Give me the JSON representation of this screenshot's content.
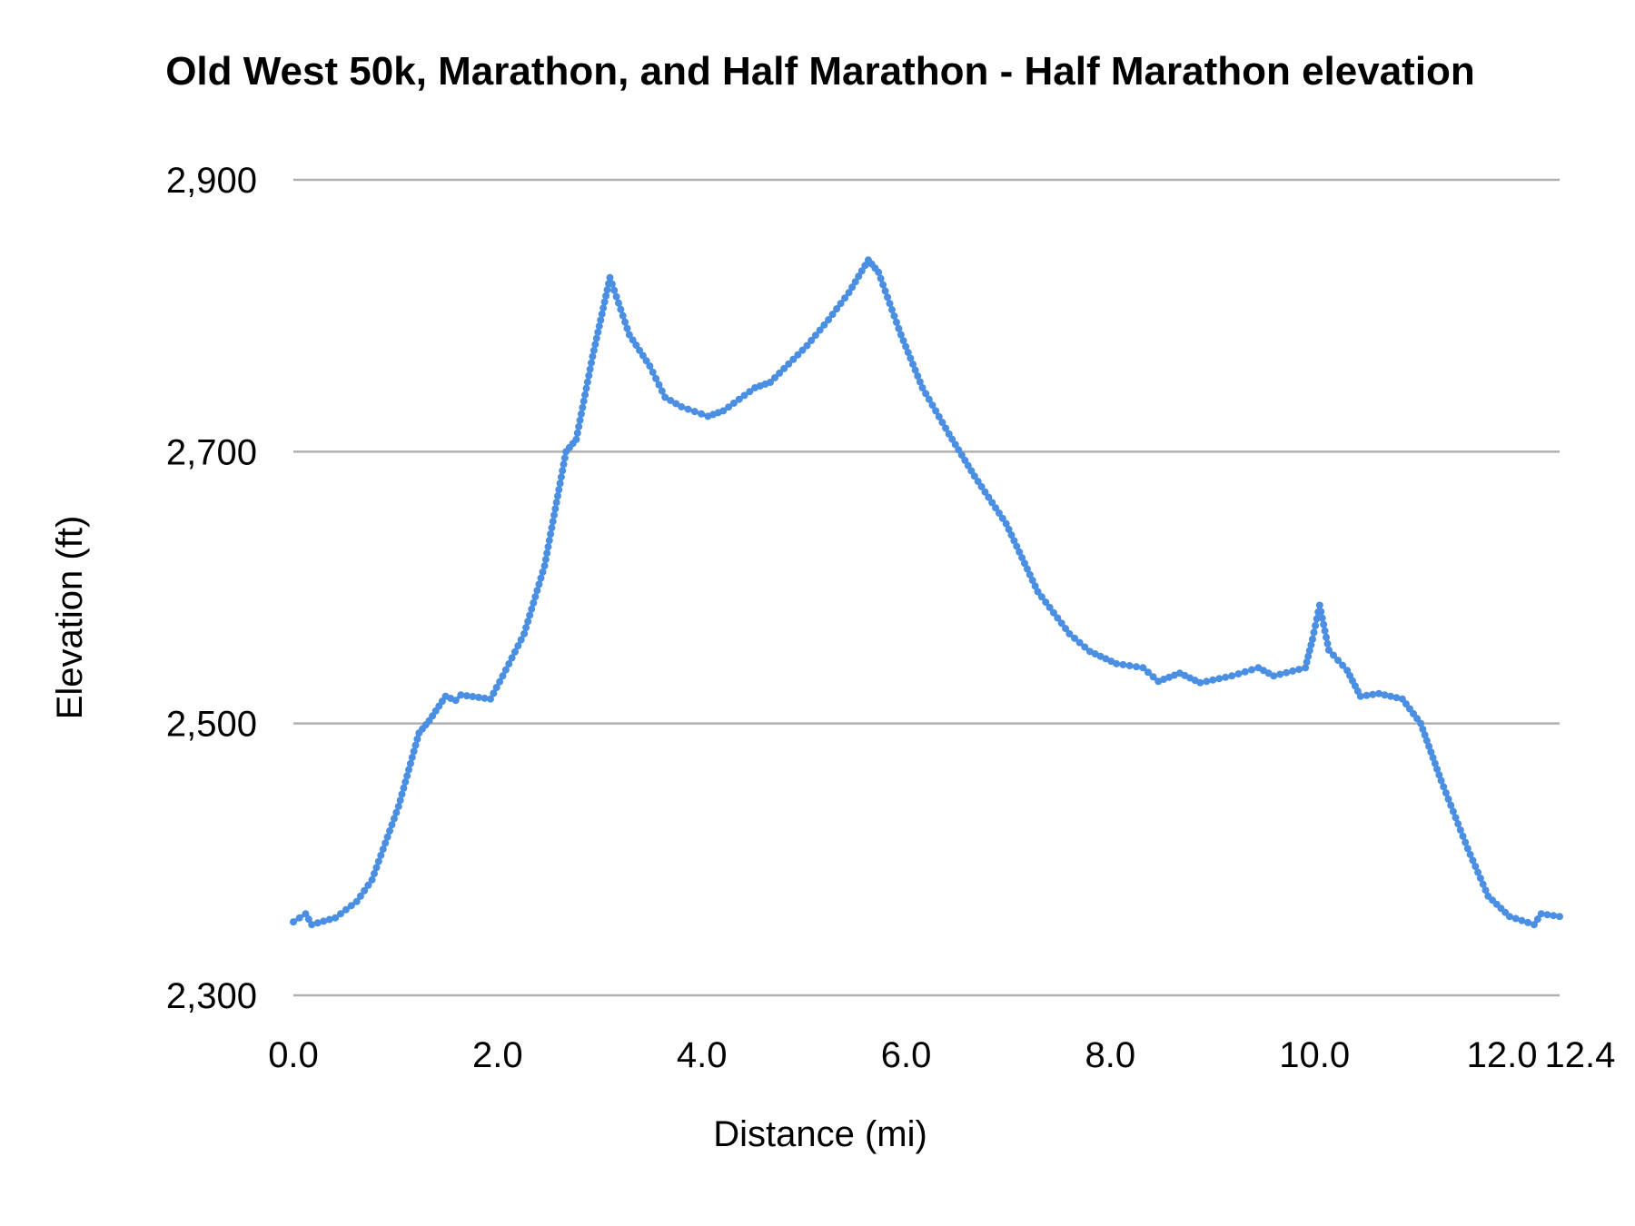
{
  "chart_data": {
    "type": "line",
    "title": "Old West 50k, Marathon, and Half Marathon - Half Marathon elevation",
    "xlabel": "Distance (mi)",
    "ylabel": "Elevation (ft)",
    "xlim": [
      0,
      12.4
    ],
    "ylim": [
      2300,
      2900
    ],
    "xticks": [
      "0.0",
      "2.0",
      "4.0",
      "6.0",
      "8.0",
      "10.0",
      "12.0",
      "12.4"
    ],
    "xtick_values": [
      0,
      2,
      4,
      6,
      8,
      10,
      12,
      12.4
    ],
    "yticks": [
      "2,300",
      "2,500",
      "2,700",
      "2,900"
    ],
    "ytick_values": [
      2300,
      2500,
      2700,
      2900
    ],
    "grid": "horizontal",
    "legend": "none",
    "color": "#4a8fe2",
    "gridline_color": "#b0b0b0",
    "series": [
      {
        "x": [
          0,
          0.12,
          0.18,
          0.41,
          0.62,
          0.77,
          1.03,
          1.23,
          1.33,
          1.49,
          1.59,
          1.64,
          1.93,
          2.05,
          2.26,
          2.46,
          2.67,
          2.77,
          2.93,
          3.1,
          3.29,
          3.49,
          3.64,
          3.8,
          4.06,
          4.21,
          4.52,
          4.67,
          5.03,
          5.24,
          5.44,
          5.63,
          5.73,
          5.95,
          6.16,
          6.42,
          6.67,
          6.98,
          7.29,
          7.6,
          7.8,
          8.06,
          8.32,
          8.47,
          8.68,
          8.88,
          9.19,
          9.45,
          9.6,
          9.91,
          9.98,
          10.05,
          10.14,
          10.32,
          10.45,
          10.63,
          10.86,
          11.04,
          11.24,
          11.5,
          11.7,
          11.91,
          12.15,
          12.22,
          12.4
        ],
        "y": [
          2354,
          2360,
          2352,
          2357,
          2369,
          2385,
          2439,
          2493,
          2502,
          2520,
          2517,
          2521,
          2518,
          2535,
          2566,
          2616,
          2700,
          2709,
          2770,
          2828,
          2786,
          2763,
          2740,
          2733,
          2726,
          2730,
          2747,
          2751,
          2778,
          2797,
          2817,
          2841,
          2832,
          2786,
          2747,
          2713,
          2682,
          2647,
          2597,
          2566,
          2553,
          2544,
          2541,
          2531,
          2537,
          2530,
          2535,
          2541,
          2535,
          2541,
          2562,
          2587,
          2554,
          2539,
          2520,
          2522,
          2518,
          2500,
          2458,
          2408,
          2373,
          2358,
          2352,
          2360,
          2358
        ]
      }
    ]
  }
}
